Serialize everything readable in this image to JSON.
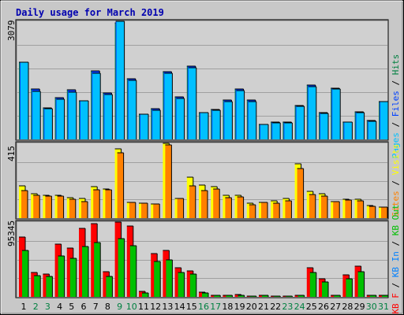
{
  "chart_data": {
    "title": "Daily usage for March 2019",
    "days": [
      "1",
      "2",
      "3",
      "4",
      "5",
      "6",
      "7",
      "8",
      "9",
      "10",
      "11",
      "12",
      "13",
      "14",
      "15",
      "16",
      "17",
      "18",
      "19",
      "20",
      "21",
      "22",
      "23",
      "24",
      "25",
      "26",
      "27",
      "28",
      "29",
      "30",
      "31"
    ],
    "weekend_days": [
      "2",
      "3",
      "9",
      "10",
      "16",
      "17",
      "23",
      "24",
      "30",
      "31"
    ],
    "colors": {
      "background": "#c8c8c8",
      "plot": "#d0d0d0",
      "hits": "#008040",
      "files": "#0040ff",
      "pages": "#00c0ff",
      "visits": "#ffff00",
      "sites": "#ff8000",
      "kb_f": "#ff0000",
      "kb_in": "#0080ff",
      "kb_out": "#00c000",
      "weekday_label": "#000000",
      "weekend_label": "#008040"
    },
    "charts": [
      {
        "type": "bar",
        "max_label": "3079",
        "ylim": [
          0,
          3079
        ],
        "legend": [
          {
            "text": "Hits",
            "color": "#008040"
          },
          {
            "text": "Files",
            "color": "#0040ff"
          },
          {
            "text": "Pages",
            "color": "#00c0ff"
          }
        ],
        "separators": [
          " / ",
          " / "
        ],
        "series": [
          {
            "name": "Hits",
            "values": [
              2020,
              1310,
              820,
              1080,
              1300,
              1010,
              1780,
              1220,
              3030,
              1580,
              650,
              800,
              1760,
              1100,
              1900,
              700,
              780,
              1030,
              1320,
              1030,
              400,
              450,
              460,
              880,
              1420,
              690,
              1340,
              460,
              720,
              500,
              990
            ]
          },
          {
            "name": "Files",
            "values": [
              2020,
              1310,
              820,
              1080,
              1300,
              1010,
              1780,
              1220,
              3079,
              1580,
              650,
              800,
              1760,
              1100,
              1900,
              700,
              780,
              1030,
              1320,
              1030,
              400,
              450,
              460,
              880,
              1420,
              690,
              1340,
              460,
              720,
              500,
              990
            ]
          },
          {
            "name": "Pages",
            "values": [
              2020,
              1260,
              810,
              1040,
              1240,
              1000,
              1730,
              1180,
              3079,
              1540,
              650,
              760,
              1720,
              1060,
              1860,
              690,
              760,
              990,
              1270,
              990,
              390,
              440,
              440,
              860,
              1380,
              670,
              1310,
              450,
              700,
              480,
              980
            ]
          }
        ]
      },
      {
        "type": "bar",
        "max_label": "415",
        "ylim": [
          0,
          415
        ],
        "legend": [
          {
            "text": "Visits",
            "color": "#ffff00"
          },
          {
            "text": "Sites",
            "color": "#ff8000"
          }
        ],
        "separators": [
          " / "
        ],
        "series": [
          {
            "name": "Visits",
            "values": [
              178,
              136,
              128,
              128,
              115,
              109,
              176,
              163,
              386,
              86,
              84,
              80,
              415,
              108,
              225,
              184,
              176,
              127,
              126,
              84,
              88,
              94,
              111,
              301,
              150,
              135,
              93,
              107,
              104,
              71,
              62
            ]
          },
          {
            "name": "Sites",
            "values": [
              153,
              125,
              122,
              124,
              105,
              93,
              157,
              156,
              362,
              86,
              84,
              80,
              407,
              108,
              181,
              153,
              162,
              115,
              116,
              76,
              87,
              83,
              98,
              274,
              129,
              121,
              90,
              99,
              97,
              66,
              59
            ]
          }
        ]
      },
      {
        "type": "bar",
        "max_label": "95345",
        "ylim": [
          0,
          95345
        ],
        "legend": [
          {
            "text": "KB F",
            "color": "#ff0000"
          },
          {
            "text": "KB In",
            "color": "#0080ff"
          },
          {
            "text": "KB Out",
            "color": "#00c000"
          }
        ],
        "separators": [
          " / ",
          " / "
        ],
        "series": [
          {
            "name": "KB F",
            "values": [
              76000,
              31000,
              29000,
              67000,
              62000,
              87000,
              93000,
              32000,
              95345,
              90000,
              7000,
              55000,
              59000,
              37000,
              33000,
              6000,
              2500,
              2500,
              3000,
              1500,
              2000,
              1000,
              1500,
              2000,
              37000,
              23000,
              2000,
              28000,
              39000,
              2000,
              2000
            ]
          },
          {
            "name": "KB Out",
            "values": [
              59000,
              27000,
              26000,
              52000,
              49000,
              64000,
              69000,
              26000,
              74000,
              65000,
              5000,
              45000,
              47000,
              31000,
              29000,
              5000,
              2000,
              2000,
              2500,
              1200,
              1700,
              800,
              1200,
              1700,
              31000,
              19000,
              1700,
              23000,
              32000,
              1700,
              1700
            ]
          }
        ]
      }
    ]
  }
}
